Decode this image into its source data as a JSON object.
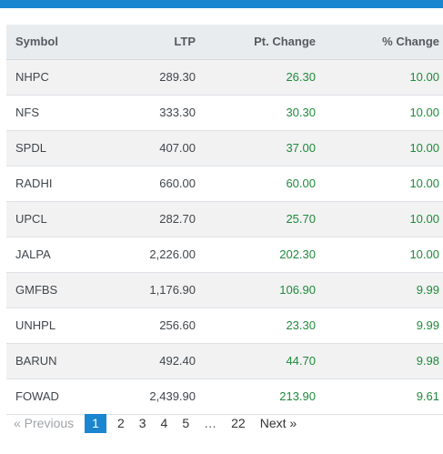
{
  "table": {
    "headers": {
      "symbol": "Symbol",
      "ltp": "LTP",
      "pt_change": "Pt. Change",
      "pct_change": "% Change"
    },
    "rows": [
      {
        "symbol": "NHPC",
        "ltp": "289.30",
        "pt_change": "26.30",
        "pct_change": "10.00"
      },
      {
        "symbol": "NFS",
        "ltp": "333.30",
        "pt_change": "30.30",
        "pct_change": "10.00"
      },
      {
        "symbol": "SPDL",
        "ltp": "407.00",
        "pt_change": "37.00",
        "pct_change": "10.00"
      },
      {
        "symbol": "RADHI",
        "ltp": "660.00",
        "pt_change": "60.00",
        "pct_change": "10.00"
      },
      {
        "symbol": "UPCL",
        "ltp": "282.70",
        "pt_change": "25.70",
        "pct_change": "10.00"
      },
      {
        "symbol": "JALPA",
        "ltp": "2,226.00",
        "pt_change": "202.30",
        "pct_change": "10.00"
      },
      {
        "symbol": "GMFBS",
        "ltp": "1,176.90",
        "pt_change": "106.90",
        "pct_change": "9.99"
      },
      {
        "symbol": "UNHPL",
        "ltp": "256.60",
        "pt_change": "23.30",
        "pct_change": "9.99"
      },
      {
        "symbol": "BARUN",
        "ltp": "492.40",
        "pt_change": "44.70",
        "pct_change": "9.98"
      },
      {
        "symbol": "FOWAD",
        "ltp": "2,439.90",
        "pt_change": "213.90",
        "pct_change": "9.61"
      }
    ]
  },
  "pagination": {
    "previous_label": "« Previous",
    "next_label": "Next »",
    "pages": [
      "1",
      "2",
      "3",
      "4",
      "5"
    ],
    "ellipsis": "…",
    "last_page": "22",
    "current_page": "1"
  },
  "colors": {
    "accent": "#1a86cf",
    "positive": "#1f8a3c",
    "header_bg": "#e9ecef"
  }
}
